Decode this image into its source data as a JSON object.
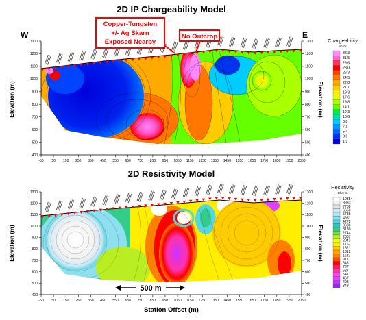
{
  "chart_data": [
    {
      "type": "heatmap",
      "title": "2D IP Chargeability Model",
      "ylabel": "Elevation (m)",
      "y_ticks": [
        1300,
        1200,
        1100,
        1000,
        900,
        800,
        700,
        600,
        500,
        400
      ],
      "ylim": [
        400,
        1300
      ],
      "x_ticks": [
        -50,
        50,
        150,
        250,
        350,
        450,
        550,
        650,
        750,
        850,
        950,
        1050,
        1150,
        1250,
        1350,
        1450,
        1550,
        1650,
        1750,
        1850,
        1950,
        2050
      ],
      "xlim": [
        -50,
        2050
      ],
      "legend": {
        "title": "Chargeability",
        "unit": "mV/V",
        "position": "right",
        "values": [
          "33.3",
          "31.5",
          "29.6",
          "28.0",
          "26.3",
          "24.5",
          "22.8",
          "21.1",
          "19.3",
          "17.6",
          "15.8",
          "14.1",
          "12.3",
          "10.6",
          "8.8",
          "7.1",
          "5.4",
          "3.6",
          "1.9"
        ],
        "colors": [
          "#ff88ff",
          "#ff66cc",
          "#ff3355",
          "#ff0000",
          "#ff4400",
          "#ff7700",
          "#ffaa00",
          "#ffcc00",
          "#ffee00",
          "#ddff00",
          "#aaff00",
          "#66ff00",
          "#00ee44",
          "#00ddaa",
          "#00ccff",
          "#0099ff",
          "#0066ff",
          "#0033ee",
          "#0000dd"
        ]
      },
      "annotations": [
        "W",
        "E",
        "Copper-Tungsten",
        "+/- Ag Skarn",
        "Exposed Nearby",
        "No Outcrop"
      ]
    },
    {
      "type": "heatmap",
      "title": "2D Resistivity Model",
      "ylabel": "Elevation (m)",
      "xlabel": "Station Offset (m)",
      "y_ticks": [
        1300,
        1200,
        1100,
        1000,
        900,
        800,
        700,
        600,
        500,
        400
      ],
      "ylim": [
        400,
        1300
      ],
      "x_ticks": [
        -50,
        50,
        150,
        250,
        350,
        450,
        550,
        650,
        750,
        850,
        950,
        1050,
        1150,
        1250,
        1350,
        1450,
        1550,
        1650,
        1750,
        1850,
        1950,
        2050
      ],
      "xlim": [
        -50,
        2050
      ],
      "legend": {
        "title": "Resistivity",
        "unit": "Ohm-m",
        "position": "right",
        "values": [
          "10354",
          "8933",
          "7708",
          "6650",
          "5738",
          "4951",
          "4272",
          "3686",
          "3180",
          "2744",
          "2367",
          "2043",
          "1762",
          "1521",
          "1312",
          "1132",
          "977",
          "843",
          "727",
          "627",
          "541",
          "467",
          "403",
          "348"
        ],
        "colors": [
          "#ffffff",
          "#f2f2f2",
          "#e4e4e4",
          "#cfe9f5",
          "#b3e4f5",
          "#8ee0f0",
          "#55d6e0",
          "#22ccbb",
          "#33cc88",
          "#77dd44",
          "#bbee22",
          "#eeff11",
          "#ffee00",
          "#ffcc00",
          "#ffa500",
          "#ff7f00",
          "#ff4d00",
          "#ff0000",
          "#ff1a66",
          "#ff33aa",
          "#ff44dd",
          "#dd44ff",
          "#bb33ff",
          "#9922ee"
        ]
      },
      "annotations": [
        "500 m"
      ]
    }
  ]
}
